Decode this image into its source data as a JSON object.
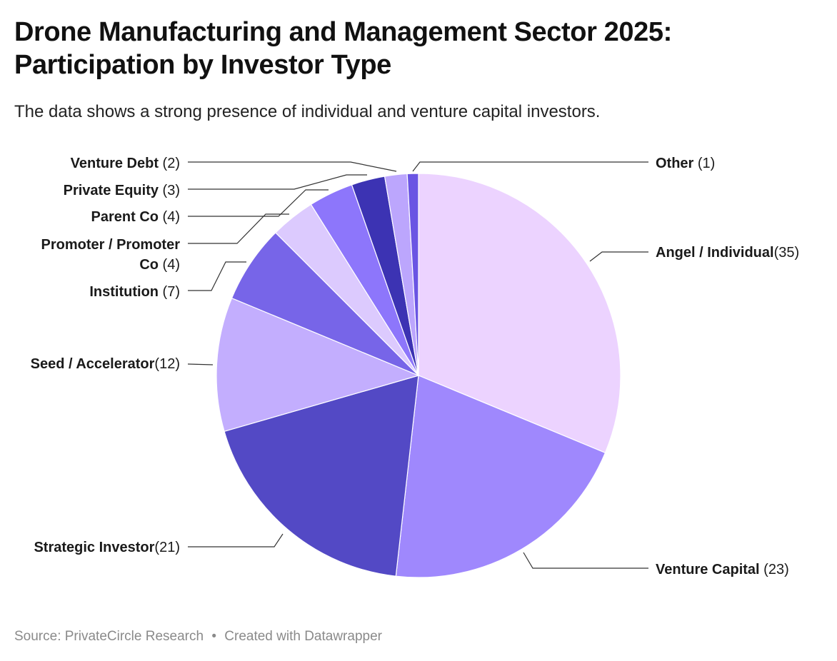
{
  "title": "Drone Manufacturing and Management Sector 2025: Participation by Investor Type",
  "subtitle": "The data shows a strong presence of individual and venture capital investors.",
  "footer": {
    "source": "Source: PrivateCircle Research",
    "separator": "•",
    "credit": "Created with Datawrapper"
  },
  "chart_data": {
    "type": "pie",
    "title": "Drone Manufacturing and Management Sector 2025: Participation by Investor Type",
    "subtitle": "The data shows a strong presence of individual and venture capital investors.",
    "start": "12 o'clock, clockwise",
    "slices": [
      {
        "label": "Angel / Individual",
        "value": 35,
        "color": "#ecd3ff",
        "label_lines": [
          [
            "Angel / Individual",
            ""
          ],
          [
            "",
            "(35)"
          ]
        ]
      },
      {
        "label": "Venture Capital",
        "value": 23,
        "color": "#9f88fd",
        "label_lines": [
          [
            "Venture Capital",
            " (23)"
          ]
        ]
      },
      {
        "label": "Strategic Investor",
        "value": 21,
        "color": "#5349c5",
        "label_lines": [
          [
            "Strategic Investor",
            ""
          ],
          [
            "",
            "(21)"
          ]
        ]
      },
      {
        "label": "Seed / Accelerator",
        "value": 12,
        "color": "#c3aefe",
        "label_lines": [
          [
            "Seed / Accelerator",
            ""
          ],
          [
            "",
            "(12)"
          ]
        ]
      },
      {
        "label": "Institution",
        "value": 7,
        "color": "#7765e8",
        "label_lines": [
          [
            "Institution",
            " (7)"
          ]
        ]
      },
      {
        "label": "Promoter / Promoter Co",
        "value": 4,
        "color": "#dccafe",
        "label_lines": [
          [
            "Promoter / Promoter",
            ""
          ],
          [
            "Co",
            " (4)"
          ]
        ]
      },
      {
        "label": "Parent Co",
        "value": 4,
        "color": "#8d76fb",
        "label_lines": [
          [
            "Parent Co",
            " (4)"
          ]
        ]
      },
      {
        "label": "Private Equity",
        "value": 3,
        "color": "#3c33b3",
        "label_lines": [
          [
            "Private Equity",
            " (3)"
          ]
        ]
      },
      {
        "label": "Venture Debt",
        "value": 2,
        "color": "#bca6fd",
        "label_lines": [
          [
            "Venture Debt",
            " (2)"
          ]
        ]
      },
      {
        "label": "Other",
        "value": 1,
        "color": "#6a55e3",
        "label_lines": [
          [
            "Other",
            " (1)"
          ]
        ]
      }
    ]
  }
}
